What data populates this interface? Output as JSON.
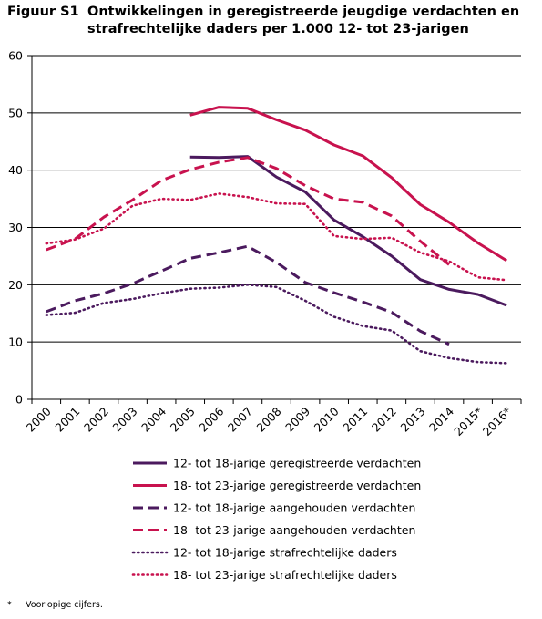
{
  "figure": {
    "label": "Figuur S1",
    "title_line1": "Ontwikkelingen in geregistreerde jeugdige verdachten en",
    "title_line2": "strafrechtelijke daders per 1.000 12- tot 23-jarigen"
  },
  "footnote": {
    "mark": "*",
    "text": "Voorlopige cijfers."
  },
  "colors": {
    "purple": "#4b1a5e",
    "crimson": "#c8124e"
  },
  "chart_data": {
    "type": "line",
    "title": "Ontwikkelingen in geregistreerde jeugdige verdachten en strafrechtelijke daders per 1.000 12- tot 23-jarigen",
    "xlabel": "",
    "ylabel": "",
    "ylim": [
      0,
      60
    ],
    "yticks": [
      0,
      10,
      20,
      30,
      40,
      50,
      60
    ],
    "grid": "horizontal",
    "legend_position": "bottom",
    "categories": [
      "2000",
      "2001",
      "2002",
      "2003",
      "2004",
      "2005",
      "2006",
      "2007",
      "2008",
      "2009",
      "2010",
      "2011",
      "2012",
      "2013",
      "2014",
      "2015*",
      "2016*"
    ],
    "series": [
      {
        "name": "12- tot 18-jarige geregistreerde verdachten",
        "color": "#4b1a5e",
        "style": "solid",
        "values": [
          null,
          null,
          null,
          null,
          null,
          42.3,
          42.2,
          42.4,
          38.8,
          36.2,
          31.3,
          28.4,
          25.0,
          20.9,
          19.2,
          18.3,
          16.4
        ]
      },
      {
        "name": "18- tot 23-jarige geregistreerde verdachten",
        "color": "#c8124e",
        "style": "solid",
        "values": [
          null,
          null,
          null,
          null,
          null,
          49.6,
          51.0,
          50.8,
          48.8,
          47.0,
          44.4,
          42.5,
          38.7,
          34.0,
          30.9,
          27.3,
          24.2
        ]
      },
      {
        "name": "12- tot 18-jarige aangehouden verdachten",
        "color": "#4b1a5e",
        "style": "dashed",
        "values": [
          15.3,
          17.2,
          18.5,
          20.2,
          22.4,
          24.6,
          25.6,
          26.7,
          23.9,
          20.4,
          18.6,
          17.0,
          15.2,
          11.9,
          9.6,
          null,
          null
        ]
      },
      {
        "name": "18- tot 23-jarige aangehouden verdachten",
        "color": "#c8124e",
        "style": "dashed",
        "values": [
          26.1,
          28.0,
          31.8,
          34.8,
          38.2,
          40.1,
          41.4,
          42.2,
          40.3,
          37.3,
          35.0,
          34.4,
          32.0,
          27.6,
          23.5,
          null,
          null
        ]
      },
      {
        "name": "12- tot 18-jarige strafrechtelijke daders",
        "color": "#4b1a5e",
        "style": "dotted",
        "values": [
          14.7,
          15.1,
          16.8,
          17.5,
          18.5,
          19.3,
          19.5,
          20.0,
          19.6,
          17.2,
          14.4,
          12.8,
          12.0,
          8.4,
          7.2,
          6.5,
          6.3
        ]
      },
      {
        "name": "18- tot 23-jarige strafrechtelijke daders",
        "color": "#c8124e",
        "style": "dotted",
        "values": [
          27.2,
          27.9,
          29.8,
          33.8,
          35.0,
          34.8,
          35.9,
          35.3,
          34.2,
          34.1,
          28.5,
          28.0,
          28.2,
          25.6,
          24.1,
          21.3,
          20.8
        ]
      }
    ]
  }
}
